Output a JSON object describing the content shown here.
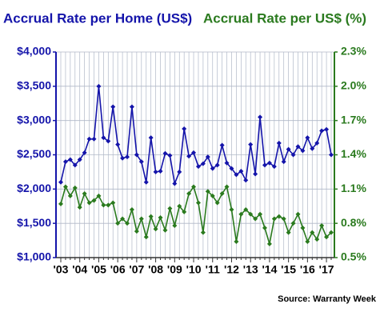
{
  "chart_data": {
    "type": "line",
    "title": "Accrual Rate per Home (US$)",
    "title2": "Accrual Rate per US$ (%)",
    "source": "Source: Warranty Week",
    "categories": [
      "'03",
      null,
      null,
      null,
      "'04",
      null,
      null,
      null,
      "'05",
      null,
      null,
      null,
      "'06",
      null,
      null,
      null,
      "'07",
      null,
      null,
      null,
      "'08",
      null,
      null,
      null,
      "'09",
      null,
      null,
      null,
      "'10",
      null,
      null,
      null,
      "'11",
      null,
      null,
      null,
      "'12",
      null,
      null,
      null,
      "'13",
      null,
      null,
      null,
      "'14",
      null,
      null,
      null,
      "'15",
      null,
      null,
      null,
      "'16",
      null,
      null,
      null,
      "'17",
      null
    ],
    "series": [
      {
        "name": "Accrual Rate per Home (US$)",
        "color": "#1414aa",
        "axis": "y",
        "values": [
          2100,
          2400,
          2430,
          2350,
          2430,
          2530,
          2730,
          2730,
          3500,
          2750,
          2700,
          3200,
          2650,
          2450,
          2470,
          3200,
          2500,
          2400,
          2100,
          2750,
          2250,
          2260,
          2520,
          2490,
          2080,
          2250,
          2880,
          2480,
          2530,
          2330,
          2370,
          2470,
          2300,
          2350,
          2640,
          2380,
          2300,
          2210,
          2260,
          2130,
          2650,
          2220,
          3050,
          2350,
          2380,
          2330,
          2670,
          2400,
          2580,
          2500,
          2620,
          2560,
          2750,
          2590,
          2670,
          2850,
          2870,
          2500
        ]
      },
      {
        "name": "Accrual Rate per US$ (%)",
        "color": "#2a7a1e",
        "axis": "y2",
        "values": [
          0.97,
          1.12,
          1.04,
          1.11,
          0.94,
          1.06,
          0.98,
          1.0,
          1.04,
          0.96,
          0.96,
          0.98,
          0.8,
          0.84,
          0.8,
          0.92,
          0.73,
          0.84,
          0.68,
          0.86,
          0.75,
          0.85,
          0.74,
          0.93,
          0.78,
          0.95,
          0.9,
          1.06,
          1.12,
          0.98,
          0.72,
          1.08,
          1.04,
          0.98,
          1.06,
          1.12,
          0.92,
          0.64,
          0.88,
          0.92,
          0.88,
          0.84,
          0.88,
          0.76,
          0.62,
          0.84,
          0.86,
          0.84,
          0.72,
          0.8,
          0.88,
          0.76,
          0.64,
          0.72,
          0.66,
          0.78,
          0.68,
          0.72
        ]
      }
    ],
    "ylim": [
      1000,
      4000
    ],
    "yticks": [
      {
        "value": 1000,
        "label": "$1,000"
      },
      {
        "value": 1500,
        "label": "$1,500"
      },
      {
        "value": 2000,
        "label": "$2,000"
      },
      {
        "value": 2500,
        "label": "$2,500"
      },
      {
        "value": 3000,
        "label": "$3,000"
      },
      {
        "value": 3500,
        "label": "$3,500"
      },
      {
        "value": 4000,
        "label": "$4,000"
      }
    ],
    "y2lim": [
      0.5,
      2.3
    ],
    "y2ticks": [
      {
        "value": 0.5,
        "label": "0.5%"
      },
      {
        "value": 0.8,
        "label": "0.8%"
      },
      {
        "value": 1.1,
        "label": "1.1%"
      },
      {
        "value": 1.4,
        "label": "1.4%"
      },
      {
        "value": 1.7,
        "label": "1.7%"
      },
      {
        "value": 2.0,
        "label": "2.0%"
      },
      {
        "value": 2.3,
        "label": "2.3%"
      }
    ],
    "grid": true
  }
}
